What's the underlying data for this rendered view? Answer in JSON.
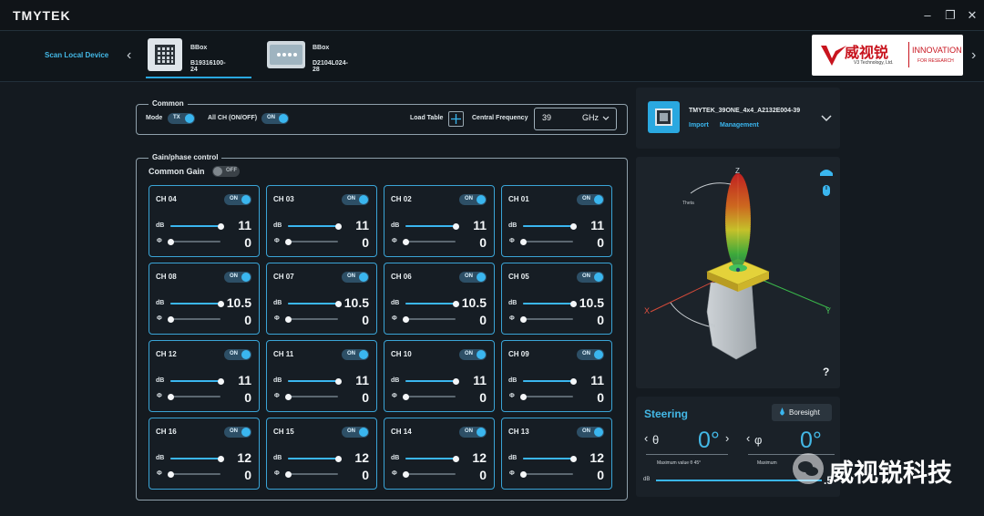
{
  "app": {
    "logo": "TMYTEK"
  },
  "window_controls": {
    "minimize": "–",
    "restore": "❐",
    "close": "✕"
  },
  "devices": {
    "scan_label": "Scan Local Device",
    "items": [
      {
        "name": "BBox",
        "id": "B19316100-24",
        "selected": true
      },
      {
        "name": "BBox",
        "id": "D2104L024-28",
        "selected": false
      }
    ]
  },
  "brand": {
    "name": "威视锐",
    "sub": "V3 Technology, Ltd.",
    "tagline1": "INNOVATION",
    "tagline2": "FOR RESEARCH"
  },
  "common": {
    "title": "Common",
    "mode_label": "Mode",
    "mode_value": "TX",
    "allch_label": "All CH (ON/OFF)",
    "allch_value": "ON",
    "load_table_label": "Load Table",
    "central_freq_label": "Central Frequency",
    "central_freq_value": "39",
    "central_freq_unit": "GHz"
  },
  "gain_phase": {
    "title": "Gain/phase control",
    "common_gain_label": "Common Gain",
    "common_gain_value": "OFF",
    "db_label": "dB",
    "phase_label": "Φ",
    "channels": [
      {
        "name": "CH 04",
        "state": "ON",
        "db": "11",
        "db_frac": 1.0,
        "phase": "0",
        "phase_frac": 0.0
      },
      {
        "name": "CH 03",
        "state": "ON",
        "db": "11",
        "db_frac": 1.0,
        "phase": "0",
        "phase_frac": 0.0
      },
      {
        "name": "CH 02",
        "state": "ON",
        "db": "11",
        "db_frac": 1.0,
        "phase": "0",
        "phase_frac": 0.0
      },
      {
        "name": "CH 01",
        "state": "ON",
        "db": "11",
        "db_frac": 1.0,
        "phase": "0",
        "phase_frac": 0.0
      },
      {
        "name": "CH 08",
        "state": "ON",
        "db": "10.5",
        "db_frac": 1.0,
        "phase": "0",
        "phase_frac": 0.0
      },
      {
        "name": "CH 07",
        "state": "ON",
        "db": "10.5",
        "db_frac": 1.0,
        "phase": "0",
        "phase_frac": 0.0
      },
      {
        "name": "CH 06",
        "state": "ON",
        "db": "10.5",
        "db_frac": 1.0,
        "phase": "0",
        "phase_frac": 0.0
      },
      {
        "name": "CH 05",
        "state": "ON",
        "db": "10.5",
        "db_frac": 1.0,
        "phase": "0",
        "phase_frac": 0.0
      },
      {
        "name": "CH 12",
        "state": "ON",
        "db": "11",
        "db_frac": 1.0,
        "phase": "0",
        "phase_frac": 0.0
      },
      {
        "name": "CH 11",
        "state": "ON",
        "db": "11",
        "db_frac": 1.0,
        "phase": "0",
        "phase_frac": 0.0
      },
      {
        "name": "CH 10",
        "state": "ON",
        "db": "11",
        "db_frac": 1.0,
        "phase": "0",
        "phase_frac": 0.0
      },
      {
        "name": "CH 09",
        "state": "ON",
        "db": "11",
        "db_frac": 1.0,
        "phase": "0",
        "phase_frac": 0.0
      },
      {
        "name": "CH 16",
        "state": "ON",
        "db": "12",
        "db_frac": 1.0,
        "phase": "0",
        "phase_frac": 0.0
      },
      {
        "name": "CH 15",
        "state": "ON",
        "db": "12",
        "db_frac": 1.0,
        "phase": "0",
        "phase_frac": 0.0
      },
      {
        "name": "CH 14",
        "state": "ON",
        "db": "12",
        "db_frac": 1.0,
        "phase": "0",
        "phase_frac": 0.0
      },
      {
        "name": "CH 13",
        "state": "ON",
        "db": "12",
        "db_frac": 1.0,
        "phase": "0",
        "phase_frac": 0.0
      }
    ]
  },
  "antenna": {
    "name": "TMYTEK_39ONE_4x4_A2132E004-39",
    "import_label": "Import",
    "management_label": "Management"
  },
  "viewer": {
    "axis_z": "Z",
    "axis_x": "X",
    "axis_y": "Y",
    "theta_label": "Theta",
    "phi_label": "Phi",
    "help": "?"
  },
  "steering": {
    "title": "Steering",
    "boresight_label": "Boresight",
    "theta_symbol": "θ",
    "theta_value": "0°",
    "theta_max": "Maximum value θ 45°",
    "phi_symbol": "φ",
    "phi_value": "0°",
    "phi_max": "Maximum",
    "db_label": "dB",
    "db_value": ".5"
  },
  "watermark": {
    "text": "威视锐科技"
  },
  "colors": {
    "accent": "#3ab6ef",
    "card_border": "#3aa4d6",
    "background": "#141a20"
  }
}
